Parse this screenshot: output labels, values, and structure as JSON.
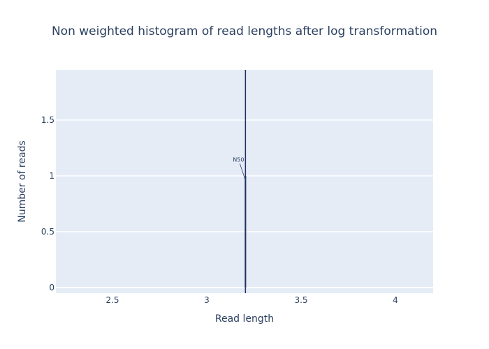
{
  "chart_data": {
    "type": "bar",
    "title": "Non weighted histogram of read lengths after log transformation",
    "xlabel": "Read length",
    "ylabel": "Number of reads",
    "xlim": [
      2.2,
      4.2
    ],
    "ylim": [
      -0.05,
      1.95
    ],
    "x_ticks": [
      2.5,
      3,
      3.5,
      4
    ],
    "x_tick_labels": [
      "2.5",
      "3",
      "3.5",
      "4"
    ],
    "y_ticks": [
      0,
      0.5,
      1,
      1.5
    ],
    "y_tick_labels": [
      "0",
      "0.5",
      "1",
      "1.5"
    ],
    "grid": true,
    "bars": [
      {
        "x": 3.205,
        "value": 1
      }
    ],
    "vlines": [
      {
        "x": 3.205
      }
    ],
    "annotations": [
      {
        "text": "N50",
        "x": 3.205,
        "y": 0.96
      }
    ],
    "colors": {
      "plot_bg": "#e5ecf6",
      "grid": "#ffffff",
      "text": "#2a3f5f",
      "line": "#1f2f66"
    }
  }
}
